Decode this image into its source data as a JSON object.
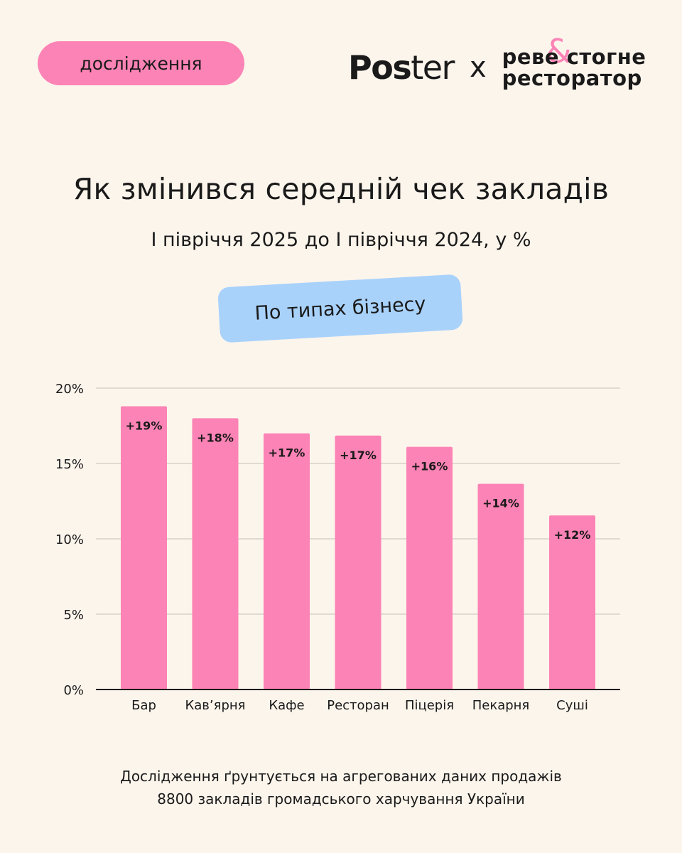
{
  "header": {
    "badge": "дослідження",
    "logo_poster_bold": "Pos",
    "logo_poster_light": "ter",
    "logo_x": "x",
    "logo_partner_line1": "реве стогне",
    "logo_partner_line2": "ресторатор",
    "logo_partner_amp": "&"
  },
  "title": "Як змінився середній чек закладів",
  "subtitle": "І півріччя 2025 до І півріччя 2024, у %",
  "segment_pill": "По типах бізнесу",
  "chart_data": {
    "type": "bar",
    "categories": [
      "Бар",
      "Кав’ярня",
      "Кафе",
      "Ресторан",
      "Піцерія",
      "Пекарня",
      "Суші"
    ],
    "values": [
      18.8,
      18.0,
      17.0,
      16.85,
      16.1,
      13.65,
      11.55
    ],
    "data_labels": [
      "+19%",
      "+18%",
      "+17%",
      "+17%",
      "+16%",
      "+14%",
      "+12%"
    ],
    "y_ticks": [
      0,
      5,
      10,
      15,
      20
    ],
    "y_tick_labels": [
      "0%",
      "5%",
      "10%",
      "15%",
      "20%"
    ],
    "ylim": [
      0,
      20
    ],
    "grid": true,
    "bar_color": "#fc83b5"
  },
  "footnote": {
    "line1": "Дослідження ґрунтується на агрегованих даних продажів",
    "line2": "8800 закладів громадського харчування України"
  }
}
